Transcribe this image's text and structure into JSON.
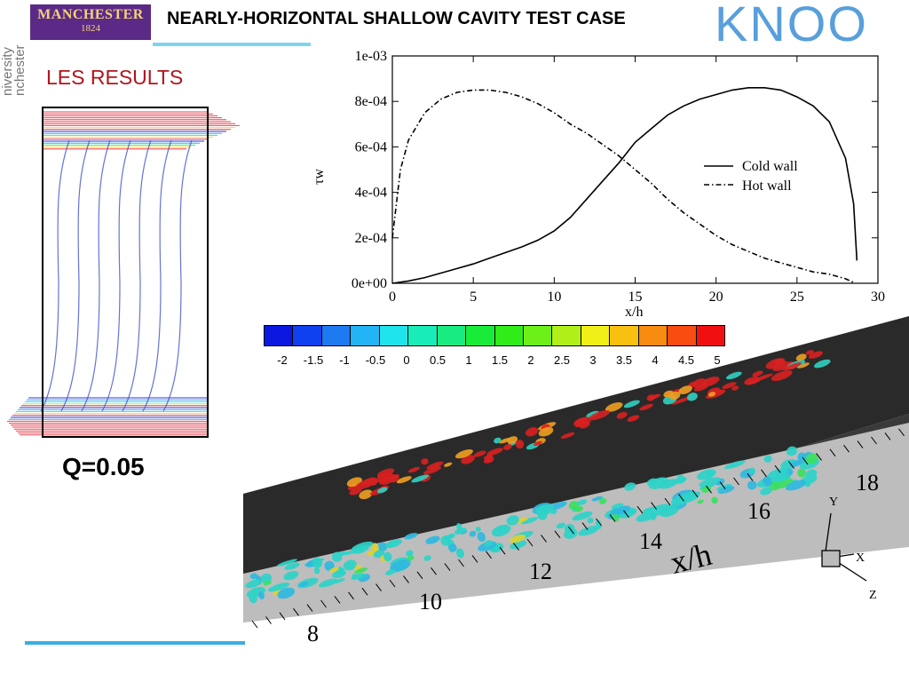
{
  "header": {
    "logo_line1": "MANCHESTER",
    "logo_line2": "1824",
    "title": "NEARLY-HORIZONTAL SHALLOW CAVITY TEST CASE",
    "watermark": "KNOO",
    "side_tag": "niversity nchester"
  },
  "section_heading": "LES RESULTS",
  "q_label": "Q=0.05",
  "chart_data": {
    "type": "line",
    "title": "",
    "xlabel": "x/h",
    "ylabel": "τw",
    "xlim": [
      0,
      30
    ],
    "ylim": [
      0,
      0.001
    ],
    "x_ticks": [
      "0",
      "5",
      "10",
      "15",
      "20",
      "25",
      "30"
    ],
    "y_ticks": [
      "0e+00",
      "2e-04",
      "4e-04",
      "6e-04",
      "8e-04",
      "1e-03"
    ],
    "legend_position": "right",
    "series": [
      {
        "name": "Cold wall",
        "style": "solid",
        "x": [
          0,
          1,
          2,
          3,
          4,
          5,
          6,
          7,
          8,
          9,
          10,
          11,
          12,
          13,
          14,
          15,
          16,
          17,
          18,
          19,
          20,
          21,
          22,
          23,
          24,
          25,
          26,
          27,
          28,
          28.5,
          28.7
        ],
        "y": [
          0,
          1e-05,
          2.5e-05,
          4.5e-05,
          6.5e-05,
          8.5e-05,
          0.00011,
          0.000135,
          0.00016,
          0.00019,
          0.00023,
          0.00029,
          0.00037,
          0.00045,
          0.00053,
          0.00062,
          0.00068,
          0.00074,
          0.00078,
          0.00081,
          0.00083,
          0.00085,
          0.00086,
          0.00086,
          0.00085,
          0.00082,
          0.00078,
          0.00071,
          0.00055,
          0.00035,
          0.0001
        ]
      },
      {
        "name": "Hot wall",
        "style": "dashdot",
        "x": [
          0,
          0.5,
          1,
          2,
          3,
          4,
          5,
          6,
          7,
          8,
          9,
          10,
          11,
          12,
          13,
          14,
          15,
          16,
          17,
          18,
          19,
          20,
          21,
          22,
          23,
          24,
          25,
          26,
          27,
          28,
          28.6
        ],
        "y": [
          0.0002,
          0.0005,
          0.00063,
          0.00075,
          0.00081,
          0.00084,
          0.00085,
          0.00085,
          0.00084,
          0.00082,
          0.00079,
          0.00075,
          0.0007,
          0.00066,
          0.00061,
          0.00056,
          0.0005,
          0.00044,
          0.00037,
          0.00031,
          0.00026,
          0.00021,
          0.00017,
          0.00014,
          0.00011,
          9e-05,
          7e-05,
          5e-05,
          4e-05,
          2e-05,
          0.0
        ]
      }
    ]
  },
  "colorbar": {
    "colors": [
      "#0a18e0",
      "#1040f0",
      "#1e7af0",
      "#22b4f4",
      "#20e4ec",
      "#18ecb8",
      "#18ec80",
      "#18ec38",
      "#30ec18",
      "#6cf018",
      "#b0f018",
      "#f0f018",
      "#f8c010",
      "#f88c10",
      "#f84c10",
      "#f01010"
    ],
    "labels": [
      "-2",
      "-1.5",
      "-1",
      "-0.5",
      "0",
      "0.5",
      "1",
      "1.5",
      "2",
      "2.5",
      "3",
      "3.5",
      "4",
      "4.5",
      "5"
    ]
  },
  "render3d": {
    "axis_label": "x/h",
    "ticks": [
      "8",
      "10",
      "12",
      "14",
      "16",
      "18"
    ],
    "triad_labels": [
      "Y",
      "X",
      "Z"
    ]
  }
}
